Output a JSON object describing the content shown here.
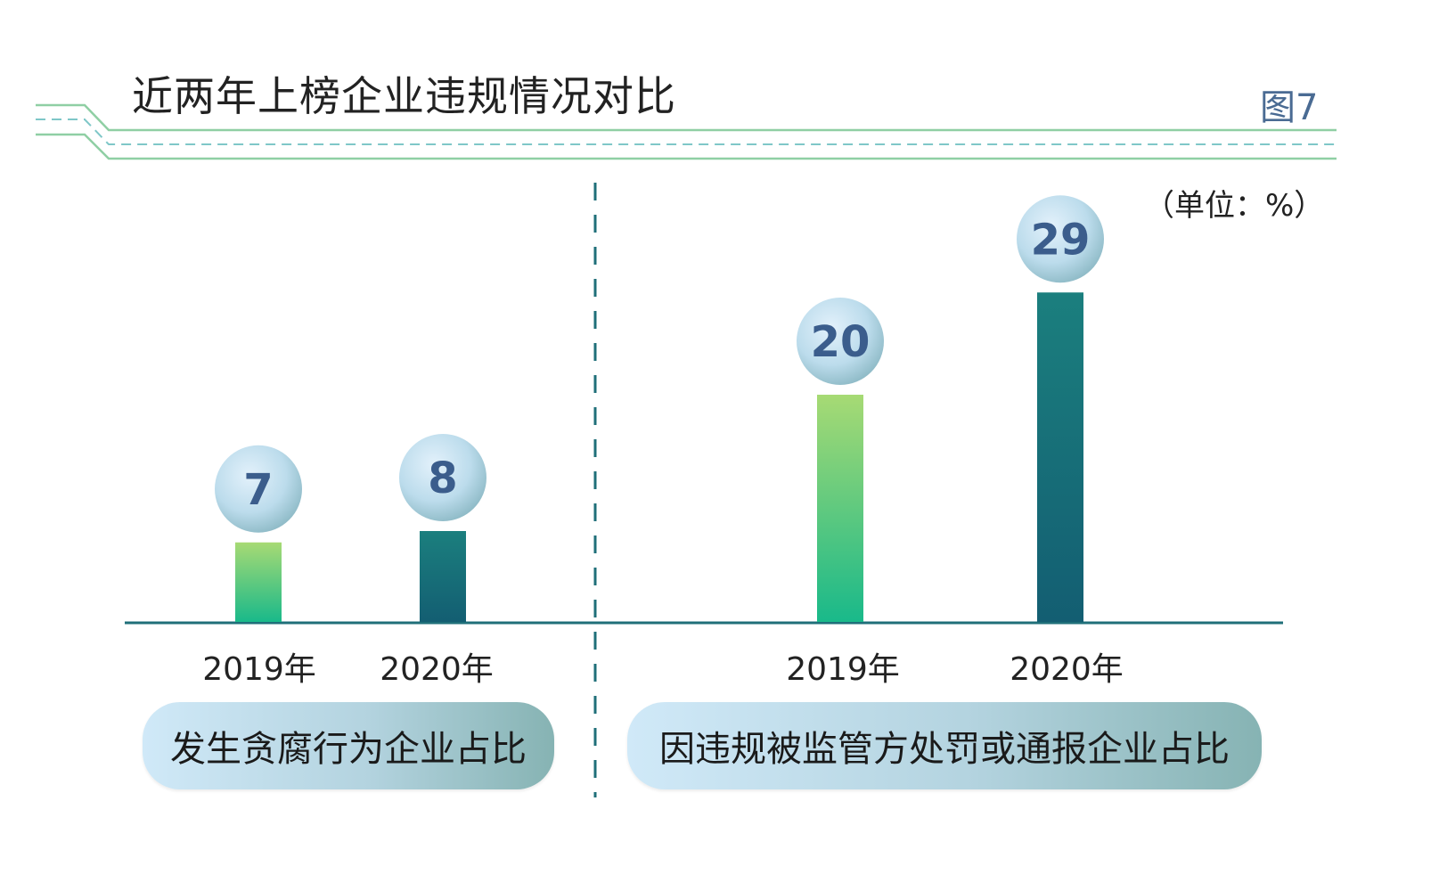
{
  "title": "近两年上榜企业违规情况对比",
  "figure_label": "图7",
  "unit_label": "（单位：%）",
  "colors": {
    "bar_2019_top": "#a7da74",
    "bar_2019_bottom": "#19b98a",
    "bar_2020_top": "#1b7f7e",
    "bar_2020_bottom": "#135e72",
    "bubble_text": "#3b5d8c",
    "axis": "#1f6f79",
    "header_line": "#8fcfa4",
    "header_dash": "#7fc7c8"
  },
  "chart_data": [
    {
      "type": "bar",
      "title": "发生贪腐行为企业占比",
      "categories": [
        "2019年",
        "2020年"
      ],
      "values": [
        7,
        8
      ],
      "unit": "%"
    },
    {
      "type": "bar",
      "title": "因违规被监管方处罚或通报企业占比",
      "categories": [
        "2019年",
        "2020年"
      ],
      "values": [
        20,
        29
      ],
      "unit": "%"
    }
  ]
}
